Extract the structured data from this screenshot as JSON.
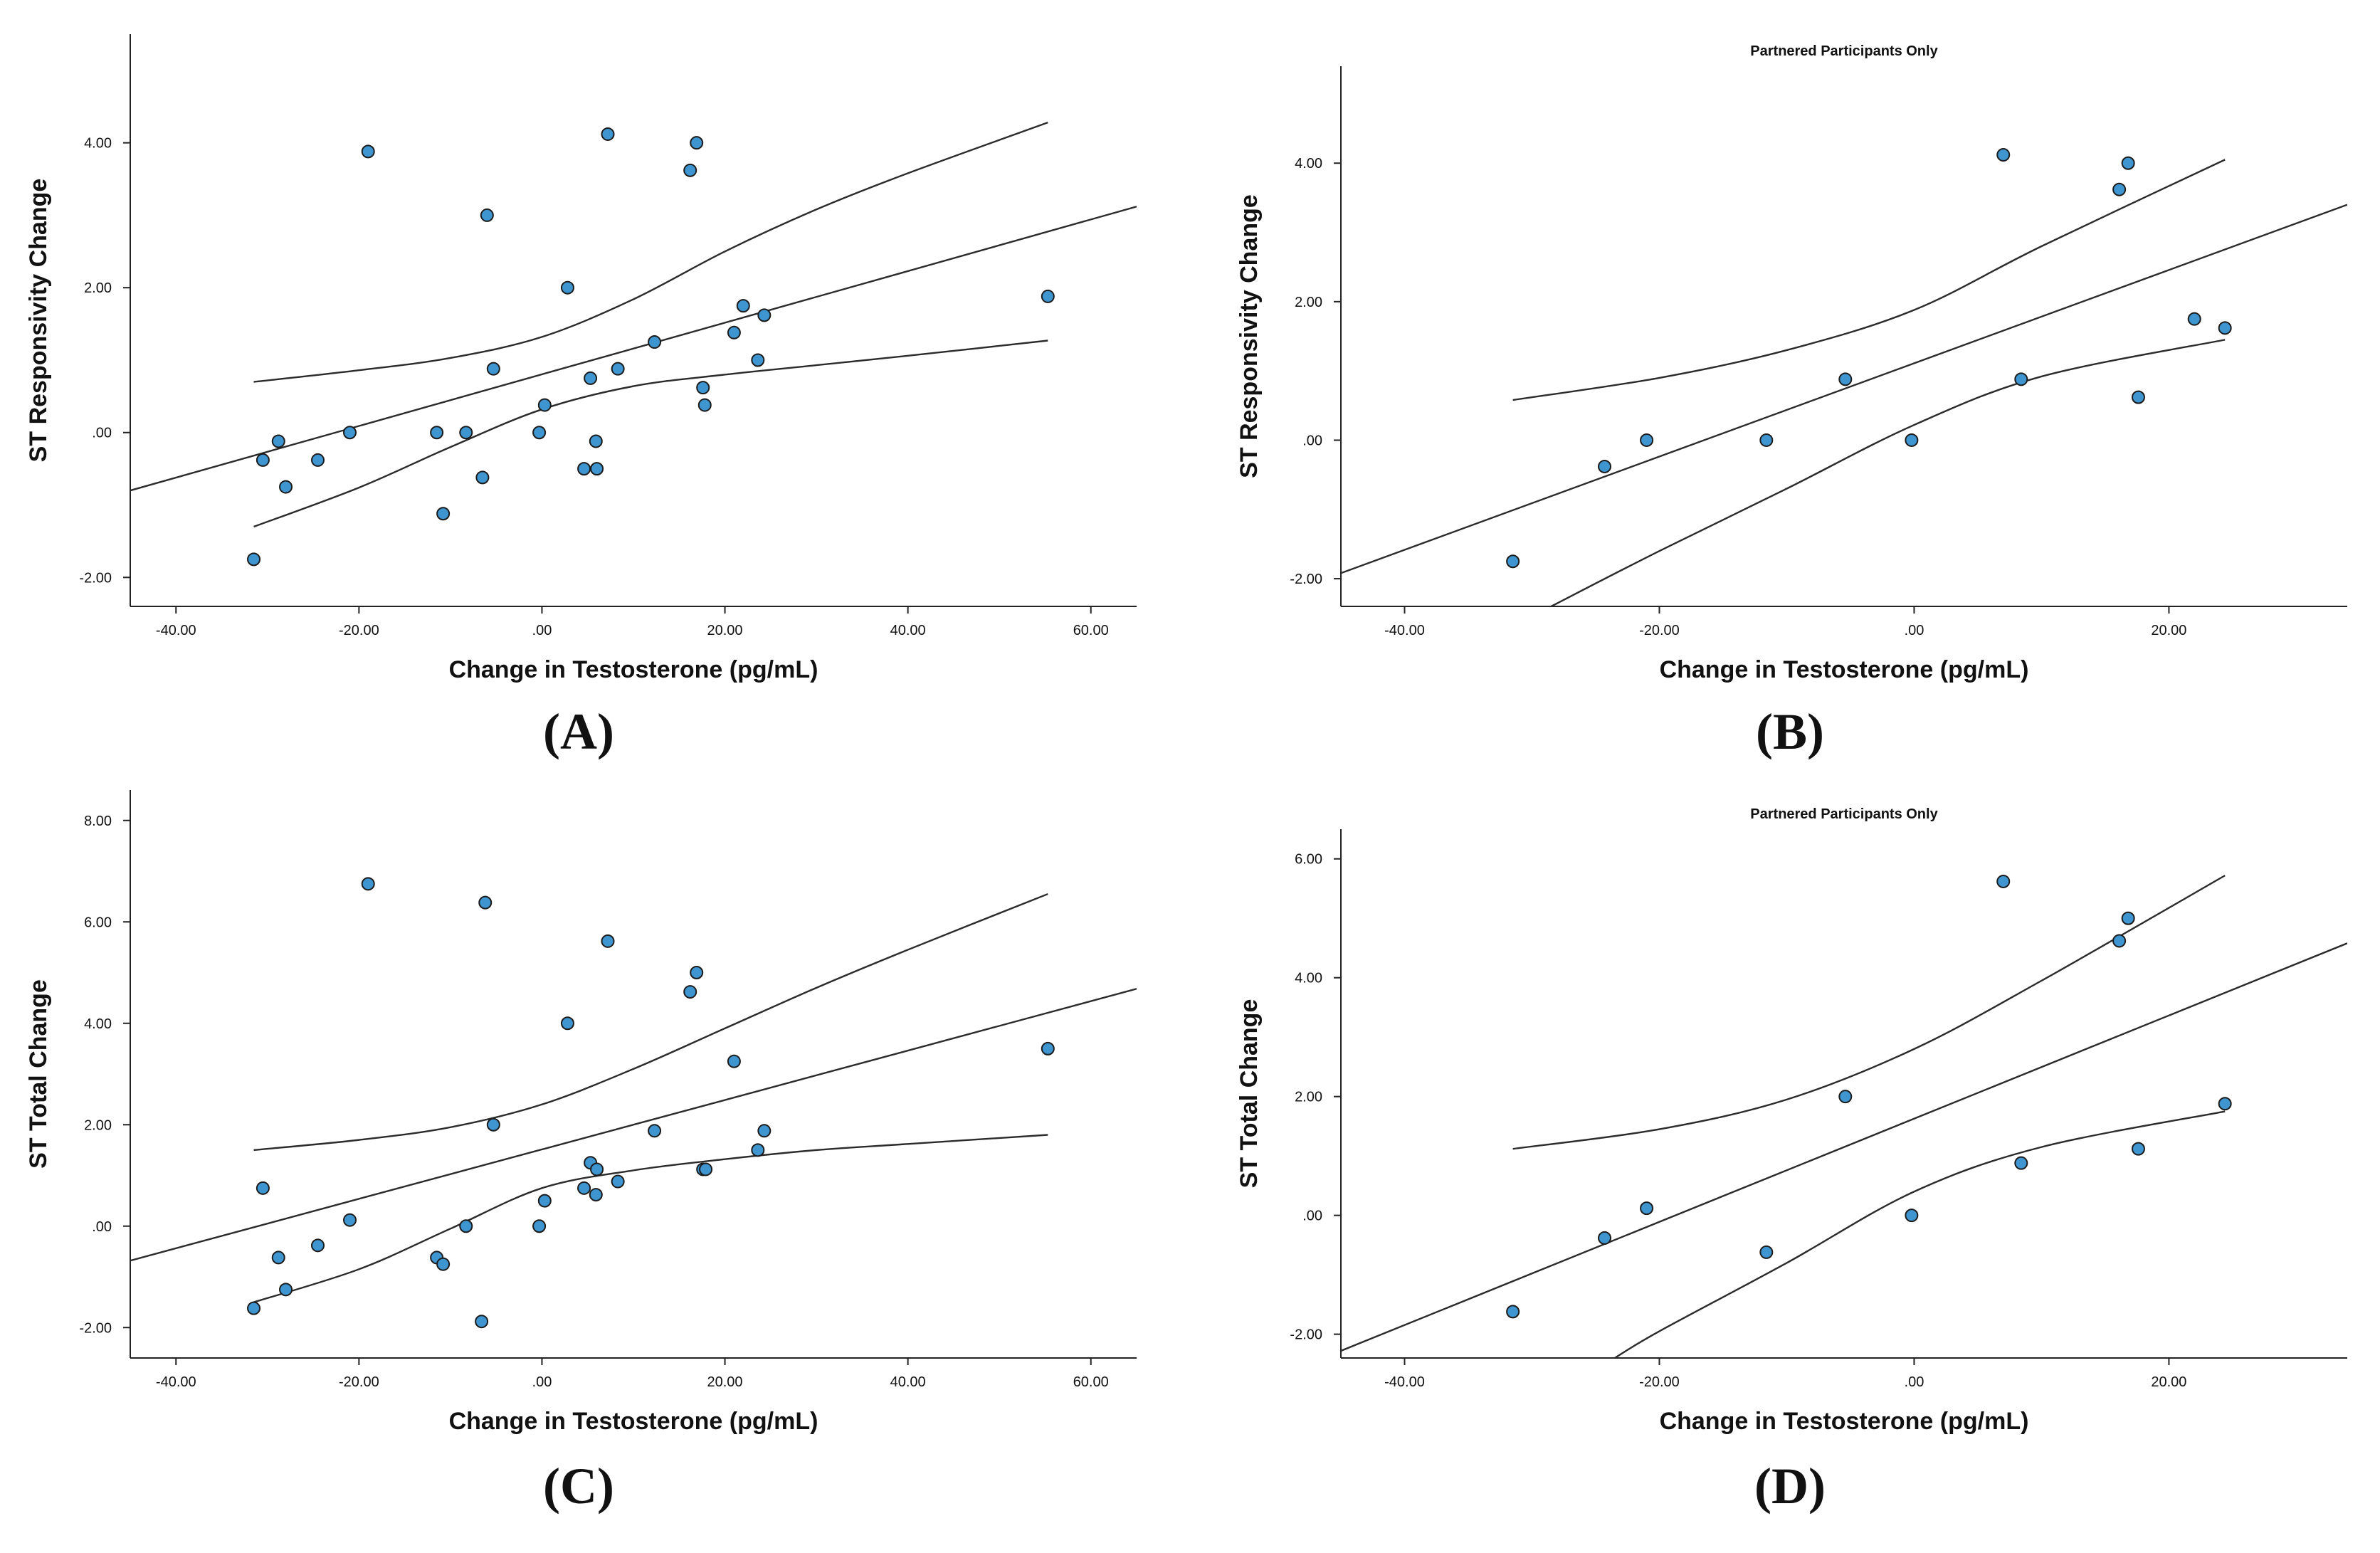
{
  "figure": {
    "panels": [
      "A",
      "B",
      "C",
      "D"
    ]
  },
  "colors": {
    "point_fill": "#3f95cf",
    "point_stroke": "#1b1b1b",
    "line": "#2b2b2b",
    "axis": "#222222",
    "text": "#111111"
  },
  "chart_data": [
    {
      "id": "A",
      "type": "scatter",
      "title": "",
      "panel_label": "(A)",
      "xlabel": "Change in Testosterone (pg/mL)",
      "ylabel": "ST Responsivity Change",
      "xlim": [
        -45,
        65
      ],
      "ylim": [
        -2.4,
        5.5
      ],
      "xticks": [
        -40,
        -20,
        0,
        20,
        40,
        60
      ],
      "xtick_labels": [
        "-40.00",
        "-20.00",
        ".00",
        "20.00",
        "40.00",
        "60.00"
      ],
      "yticks": [
        -2,
        0,
        2,
        4
      ],
      "ytick_labels": [
        "-2.00",
        ".00",
        "2.00",
        "4.00"
      ],
      "points": [
        {
          "x": -31.5,
          "y": -1.75
        },
        {
          "x": -30.5,
          "y": -0.38
        },
        {
          "x": -28.8,
          "y": -0.12
        },
        {
          "x": -28.0,
          "y": -0.75
        },
        {
          "x": -24.5,
          "y": -0.38
        },
        {
          "x": -21.0,
          "y": 0.0
        },
        {
          "x": -19.0,
          "y": 3.88
        },
        {
          "x": -11.5,
          "y": 0.0
        },
        {
          "x": -10.8,
          "y": -1.12
        },
        {
          "x": -8.3,
          "y": 0.0
        },
        {
          "x": -6.5,
          "y": -0.62
        },
        {
          "x": -6.0,
          "y": 3.0
        },
        {
          "x": -5.3,
          "y": 0.88
        },
        {
          "x": -0.3,
          "y": 0.0
        },
        {
          "x": 0.3,
          "y": 0.38
        },
        {
          "x": 2.8,
          "y": 2.0
        },
        {
          "x": 4.6,
          "y": -0.5
        },
        {
          "x": 5.3,
          "y": 0.75
        },
        {
          "x": 5.9,
          "y": -0.12
        },
        {
          "x": 6.0,
          "y": -0.5
        },
        {
          "x": 7.2,
          "y": 4.12
        },
        {
          "x": 8.3,
          "y": 0.88
        },
        {
          "x": 12.3,
          "y": 1.25
        },
        {
          "x": 16.2,
          "y": 3.62
        },
        {
          "x": 16.9,
          "y": 4.0
        },
        {
          "x": 17.6,
          "y": 0.62
        },
        {
          "x": 17.8,
          "y": 0.38
        },
        {
          "x": 21.0,
          "y": 1.38
        },
        {
          "x": 22.0,
          "y": 1.75
        },
        {
          "x": 23.6,
          "y": 1.0
        },
        {
          "x": 24.3,
          "y": 1.62
        },
        {
          "x": 55.3,
          "y": 1.88
        }
      ],
      "fit_line": {
        "x": [
          -45,
          65
        ],
        "y": [
          -0.8,
          3.12
        ]
      },
      "ci_upper": {
        "x": [
          -31.5,
          -20,
          -10,
          0,
          10,
          20,
          30,
          40,
          55.3
        ],
        "y": [
          0.7,
          0.86,
          1.03,
          1.32,
          1.84,
          2.5,
          3.08,
          3.58,
          4.28
        ]
      },
      "ci_lower": {
        "x": [
          -31.5,
          -20,
          -10,
          0,
          10,
          20,
          30,
          40,
          55.3
        ],
        "y": [
          -1.3,
          -0.76,
          -0.2,
          0.32,
          0.64,
          0.8,
          0.93,
          1.06,
          1.27
        ]
      }
    },
    {
      "id": "B",
      "type": "scatter",
      "title": "Partnered Participants Only",
      "panel_label": "(B)",
      "xlabel": "Change in Testosterone (pg/mL)",
      "ylabel": "ST Responsivity Change",
      "xlim": [
        -45,
        34
      ],
      "ylim": [
        -2.4,
        5.4
      ],
      "xticks": [
        -40,
        -20,
        0,
        20
      ],
      "xtick_labels": [
        "-40.00",
        "-20.00",
        ".00",
        "20.00"
      ],
      "yticks": [
        -2,
        0,
        2,
        4
      ],
      "ytick_labels": [
        "-2.00",
        ".00",
        "2.00",
        "4.00"
      ],
      "points": [
        {
          "x": -31.5,
          "y": -1.75
        },
        {
          "x": -24.3,
          "y": -0.38
        },
        {
          "x": -21.0,
          "y": 0.0
        },
        {
          "x": -11.6,
          "y": 0.0
        },
        {
          "x": -5.4,
          "y": 0.88
        },
        {
          "x": -0.2,
          "y": 0.0
        },
        {
          "x": 7.0,
          "y": 4.12
        },
        {
          "x": 8.4,
          "y": 0.88
        },
        {
          "x": 16.1,
          "y": 3.62
        },
        {
          "x": 16.8,
          "y": 4.0
        },
        {
          "x": 17.6,
          "y": 0.62
        },
        {
          "x": 22.0,
          "y": 1.75
        },
        {
          "x": 24.4,
          "y": 1.62
        }
      ],
      "fit_line": {
        "x": [
          -45,
          34
        ],
        "y": [
          -1.92,
          3.4
        ]
      },
      "ci_upper": {
        "x": [
          -31.5,
          -20,
          -10,
          0,
          10,
          24.4
        ],
        "y": [
          0.58,
          0.9,
          1.3,
          1.88,
          2.8,
          4.05
        ]
      },
      "ci_lower": {
        "x": [
          -28.5,
          -20,
          -10,
          0,
          10,
          24.4
        ],
        "y": [
          -2.4,
          -1.6,
          -0.7,
          0.22,
          0.92,
          1.45
        ]
      }
    },
    {
      "id": "C",
      "type": "scatter",
      "title": "",
      "panel_label": "(C)",
      "xlabel": "Change in Testosterone (pg/mL)",
      "ylabel": "ST Total Change",
      "xlim": [
        -45,
        65
      ],
      "ylim": [
        -2.6,
        8.6
      ],
      "xticks": [
        -40,
        -20,
        0,
        20,
        40,
        60
      ],
      "xtick_labels": [
        "-40.00",
        "-20.00",
        ".00",
        "20.00",
        "40.00",
        "60.00"
      ],
      "yticks": [
        -2,
        0,
        2,
        4,
        6,
        8
      ],
      "ytick_labels": [
        "-2.00",
        ".00",
        "2.00",
        "4.00",
        "6.00",
        "8.00"
      ],
      "points": [
        {
          "x": -31.5,
          "y": -1.62
        },
        {
          "x": -30.5,
          "y": 0.75
        },
        {
          "x": -28.8,
          "y": -0.62
        },
        {
          "x": -28.0,
          "y": -1.25
        },
        {
          "x": -24.5,
          "y": -0.38
        },
        {
          "x": -21.0,
          "y": 0.12
        },
        {
          "x": -19.0,
          "y": 6.75
        },
        {
          "x": -11.5,
          "y": -0.62
        },
        {
          "x": -10.8,
          "y": -0.75
        },
        {
          "x": -8.3,
          "y": 0.0
        },
        {
          "x": -6.6,
          "y": -1.88
        },
        {
          "x": -6.2,
          "y": 6.38
        },
        {
          "x": -5.3,
          "y": 2.0
        },
        {
          "x": -0.3,
          "y": 0.0
        },
        {
          "x": 0.3,
          "y": 0.5
        },
        {
          "x": 2.8,
          "y": 4.0
        },
        {
          "x": 4.6,
          "y": 0.75
        },
        {
          "x": 5.3,
          "y": 1.25
        },
        {
          "x": 5.9,
          "y": 0.62
        },
        {
          "x": 6.0,
          "y": 1.12
        },
        {
          "x": 7.2,
          "y": 5.62
        },
        {
          "x": 8.3,
          "y": 0.88
        },
        {
          "x": 12.3,
          "y": 1.88
        },
        {
          "x": 16.2,
          "y": 4.62
        },
        {
          "x": 16.9,
          "y": 5.0
        },
        {
          "x": 17.6,
          "y": 1.12
        },
        {
          "x": 17.9,
          "y": 1.12
        },
        {
          "x": 21.0,
          "y": 3.25
        },
        {
          "x": 23.6,
          "y": 1.5
        },
        {
          "x": 24.3,
          "y": 1.88
        },
        {
          "x": 55.3,
          "y": 3.5
        }
      ],
      "fit_line": {
        "x": [
          -45,
          65
        ],
        "y": [
          -0.68,
          4.68
        ]
      },
      "ci_upper": {
        "x": [
          -31.5,
          -20,
          -10,
          0,
          10,
          20,
          30,
          40,
          55.3
        ],
        "y": [
          1.5,
          1.7,
          1.95,
          2.4,
          3.1,
          3.9,
          4.7,
          5.45,
          6.55
        ]
      },
      "ci_lower": {
        "x": [
          -31.5,
          -20,
          -10,
          0,
          10,
          20,
          30,
          40,
          55.3
        ],
        "y": [
          -1.5,
          -0.85,
          -0.05,
          0.75,
          1.1,
          1.32,
          1.5,
          1.62,
          1.8
        ]
      }
    },
    {
      "id": "D",
      "type": "scatter",
      "title": "Partnered Participants Only",
      "panel_label": "(D)",
      "xlabel": "Change in Testosterone (pg/mL)",
      "ylabel": "ST Total Change",
      "xlim": [
        -45,
        34
      ],
      "ylim": [
        -2.4,
        6.5
      ],
      "xticks": [
        -40,
        -20,
        0,
        20
      ],
      "xtick_labels": [
        "-40.00",
        "-20.00",
        ".00",
        "20.00"
      ],
      "yticks": [
        -2,
        0,
        2,
        4,
        6
      ],
      "ytick_labels": [
        "-2.00",
        ".00",
        "2.00",
        "4.00",
        "6.00"
      ],
      "points": [
        {
          "x": -31.5,
          "y": -1.62
        },
        {
          "x": -24.3,
          "y": -0.38
        },
        {
          "x": -21.0,
          "y": 0.12
        },
        {
          "x": -11.6,
          "y": -0.62
        },
        {
          "x": -5.4,
          "y": 2.0
        },
        {
          "x": -0.2,
          "y": 0.0
        },
        {
          "x": 7.0,
          "y": 5.62
        },
        {
          "x": 8.4,
          "y": 0.88
        },
        {
          "x": 16.1,
          "y": 4.62
        },
        {
          "x": 16.8,
          "y": 5.0
        },
        {
          "x": 17.6,
          "y": 1.12
        },
        {
          "x": 24.4,
          "y": 1.88
        }
      ],
      "fit_line": {
        "x": [
          -45,
          34
        ],
        "y": [
          -2.28,
          4.58
        ]
      },
      "ci_upper": {
        "x": [
          -31.5,
          -20,
          -10,
          0,
          10,
          24.4
        ],
        "y": [
          1.12,
          1.45,
          1.95,
          2.8,
          3.95,
          5.72
        ]
      },
      "ci_lower": {
        "x": [
          -23.5,
          -20,
          -10,
          0,
          10,
          24.4
        ],
        "y": [
          -2.4,
          -1.95,
          -0.8,
          0.4,
          1.15,
          1.75
        ]
      }
    }
  ]
}
